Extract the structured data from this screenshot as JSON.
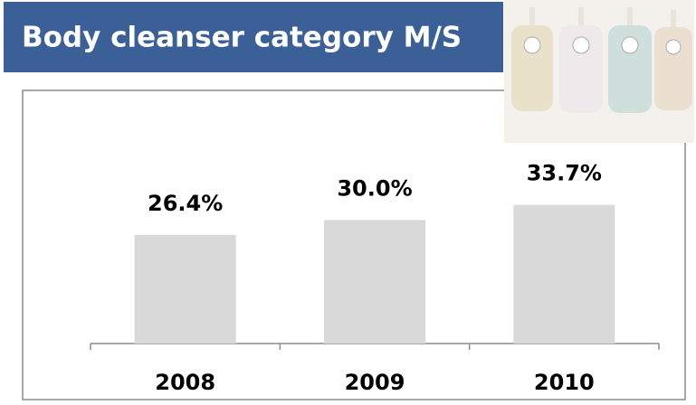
{
  "chart_data": {
    "type": "bar",
    "title": "Body cleanser category M/S",
    "categories": [
      "2008",
      "2009",
      "2010"
    ],
    "values": [
      26.4,
      30.0,
      33.7
    ],
    "value_labels": [
      "26.4%",
      "30.0%",
      "33.7%"
    ],
    "color": "#d9d9d9"
  }
}
